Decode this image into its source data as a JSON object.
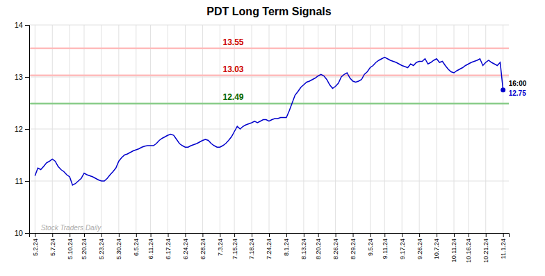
{
  "chart_data": {
    "type": "line",
    "title": "PDT Long Term Signals",
    "categories": [
      "5.2.24",
      null,
      null,
      null,
      null,
      null,
      "5.7.24",
      null,
      null,
      null,
      null,
      null,
      "5.10.24",
      null,
      null,
      null,
      null,
      "5.20.24",
      null,
      null,
      null,
      null,
      null,
      "5.23.24",
      null,
      null,
      null,
      null,
      null,
      "5.30.24",
      null,
      null,
      null,
      null,
      null,
      "6.5.24",
      null,
      null,
      null,
      null,
      "6.11.24",
      null,
      null,
      null,
      null,
      null,
      "6.17.24",
      null,
      null,
      null,
      null,
      null,
      "6.24.24",
      null,
      null,
      null,
      null,
      null,
      "6.28.24",
      null,
      null,
      null,
      null,
      null,
      "7.3.24",
      null,
      null,
      null,
      null,
      "7.15.24",
      null,
      null,
      null,
      null,
      null,
      "7.18.24",
      null,
      null,
      null,
      null,
      null,
      "7.24.24",
      null,
      null,
      null,
      null,
      null,
      "8.1.24",
      null,
      null,
      null,
      null,
      null,
      "8.13.24",
      null,
      null,
      null,
      null,
      "8.20.24",
      null,
      null,
      null,
      null,
      null,
      "8.26.24",
      null,
      null,
      null,
      null,
      null,
      "8.29.24",
      null,
      null,
      null,
      null,
      null,
      "9.5.24",
      null,
      null,
      null,
      null,
      "9.11.24",
      null,
      null,
      null,
      null,
      null,
      "9.17.24",
      null,
      null,
      null,
      null,
      null,
      "9.26.24",
      null,
      null,
      null,
      null,
      null,
      "10.7.24",
      null,
      null,
      null,
      null,
      null,
      "10.11.24",
      null,
      null,
      null,
      null,
      "10.16.24",
      null,
      null,
      null,
      null,
      null,
      "10.21.24",
      null,
      null,
      null,
      null,
      null,
      "11.1.24"
    ],
    "values": [
      11.1,
      11.25,
      11.22,
      11.28,
      11.35,
      11.38,
      11.42,
      11.38,
      11.28,
      11.22,
      11.18,
      11.12,
      11.08,
      10.92,
      10.95,
      11.0,
      11.05,
      11.15,
      11.12,
      11.1,
      11.08,
      11.05,
      11.02,
      11.0,
      11.0,
      11.05,
      11.12,
      11.18,
      11.25,
      11.38,
      11.45,
      11.5,
      11.52,
      11.55,
      11.58,
      11.6,
      11.62,
      11.65,
      11.67,
      11.68,
      11.68,
      11.68,
      11.72,
      11.78,
      11.82,
      11.85,
      11.88,
      11.9,
      11.88,
      11.8,
      11.72,
      11.68,
      11.65,
      11.65,
      11.68,
      11.7,
      11.72,
      11.75,
      11.78,
      11.8,
      11.78,
      11.72,
      11.68,
      11.65,
      11.65,
      11.68,
      11.72,
      11.78,
      11.85,
      11.95,
      12.05,
      12.0,
      12.05,
      12.08,
      12.1,
      12.12,
      12.15,
      12.12,
      12.15,
      12.18,
      12.18,
      12.15,
      12.18,
      12.2,
      12.2,
      12.22,
      12.22,
      12.22,
      12.35,
      12.5,
      12.65,
      12.72,
      12.8,
      12.85,
      12.9,
      12.92,
      12.95,
      12.98,
      13.02,
      13.05,
      13.02,
      12.95,
      12.85,
      12.78,
      12.82,
      12.88,
      13.0,
      13.05,
      13.08,
      12.98,
      12.92,
      12.9,
      12.92,
      12.95,
      13.05,
      13.1,
      13.18,
      13.22,
      13.28,
      13.32,
      13.35,
      13.38,
      13.35,
      13.32,
      13.3,
      13.28,
      13.25,
      13.22,
      13.2,
      13.18,
      13.25,
      13.22,
      13.28,
      13.3,
      13.3,
      13.35,
      13.25,
      13.28,
      13.32,
      13.35,
      13.28,
      13.3,
      13.22,
      13.15,
      13.1,
      13.08,
      13.12,
      13.15,
      13.18,
      13.22,
      13.25,
      13.28,
      13.3,
      13.32,
      13.35,
      13.22,
      13.28,
      13.32,
      13.28,
      13.25,
      13.22,
      13.28,
      12.75
    ],
    "color": "#0000cc",
    "ylim": [
      10,
      14
    ],
    "yticks": [
      10,
      11,
      12,
      13,
      14
    ],
    "grid": true,
    "reference_lines": [
      {
        "value": 13.55,
        "label": "13.55",
        "color": "#ffbbbb",
        "label_color": "#cc0000"
      },
      {
        "value": 13.03,
        "label": "13.03",
        "color": "#ffbbbb",
        "label_color": "#cc0000"
      },
      {
        "value": 12.49,
        "label": "12.49",
        "color": "#88cc88",
        "label_color": "#006600"
      }
    ],
    "end_label": "16:00",
    "end_value_label": "12.75",
    "watermark": "Stock Traders Daily"
  }
}
